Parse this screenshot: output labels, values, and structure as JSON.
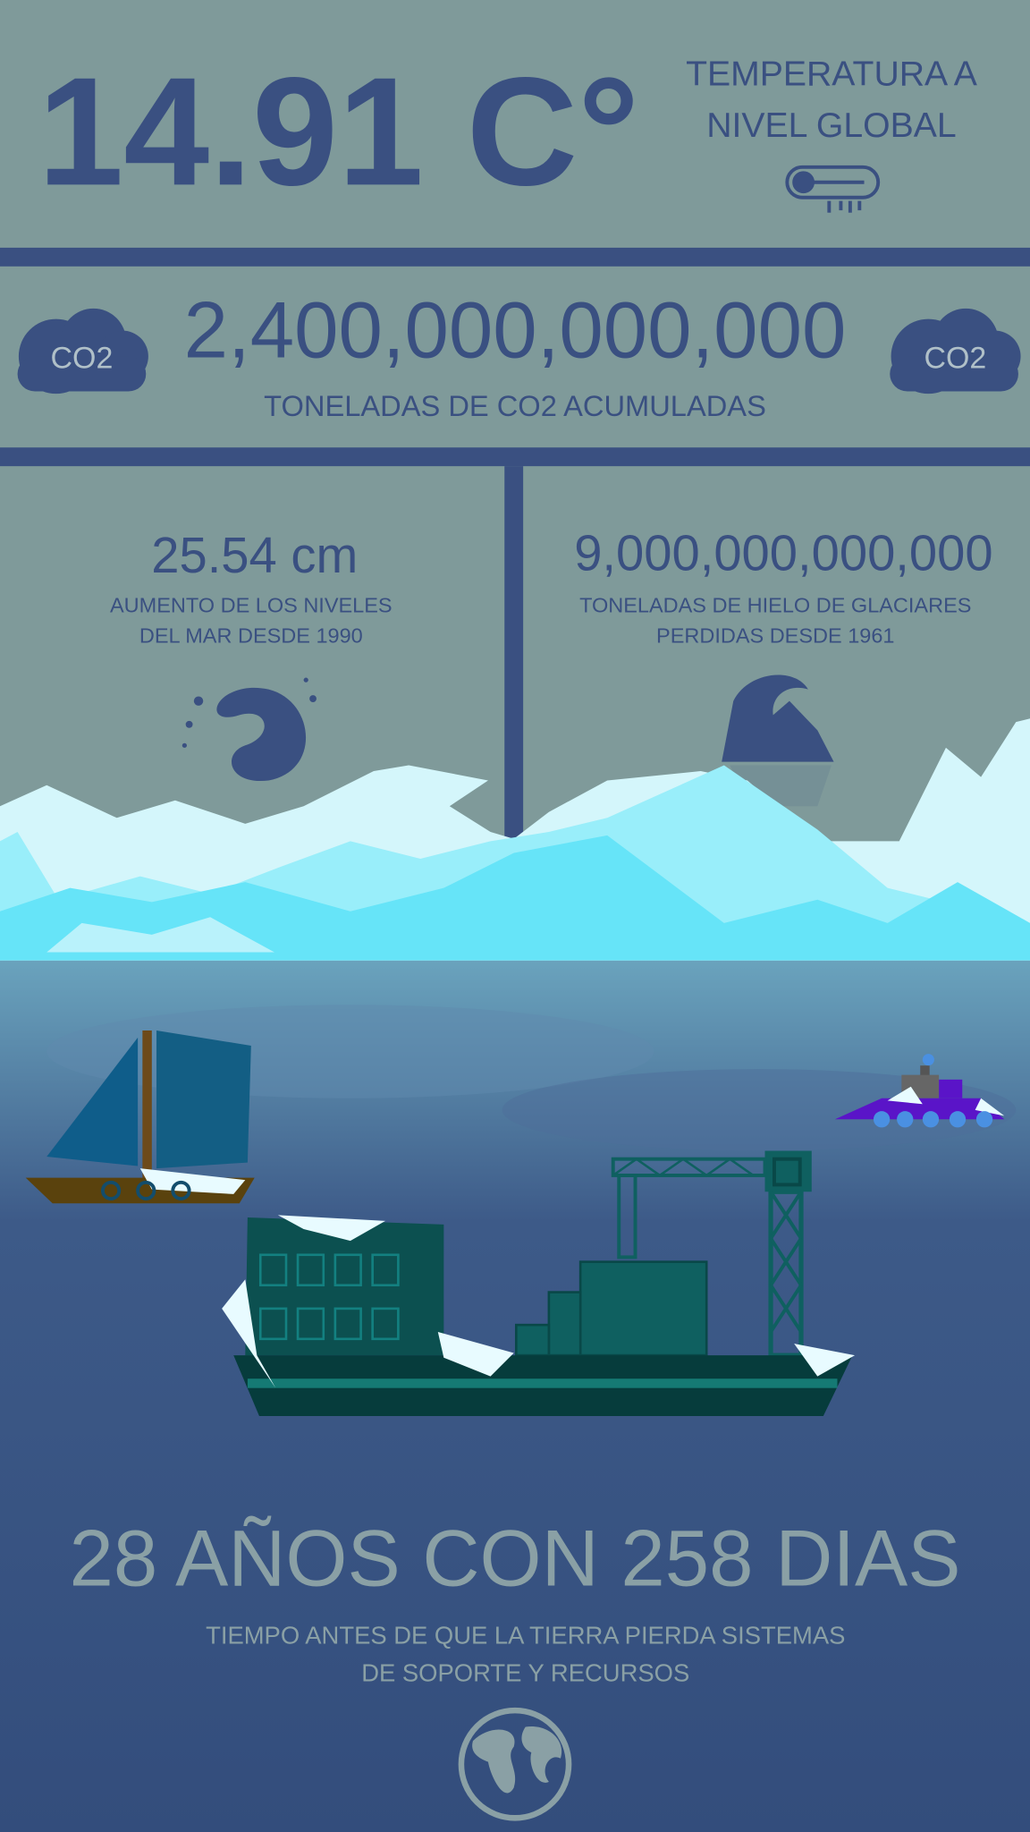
{
  "temperature": {
    "value": "14.91 C°",
    "label_lines": [
      "TEMPERATURA A",
      "NIVEL GLOBAL"
    ]
  },
  "co2": {
    "cloud_left": "CO2",
    "cloud_right": "CO2",
    "value": "2,400,000,000,000",
    "label": "TONELADAS DE CO2 ACUMULADAS"
  },
  "sea_level": {
    "value": "25.54 cm",
    "label_lines": [
      "AUMENTO DE LOS NIVELES",
      "DEL MAR DESDE 1990"
    ]
  },
  "glaciers": {
    "value": "9,000,000,000,000",
    "label_lines": [
      "TONELADAS DE HIELO DE GLACIARES",
      "PERDIDAS DESDE 1961"
    ]
  },
  "countdown": {
    "value": "28 AÑOS CON 258 DIAS",
    "label_lines": [
      "TIEMPO ANTES DE QUE LA TIERRA PIERDA SISTEMAS",
      "DE SOPORTE Y RECURSOS"
    ]
  }
}
